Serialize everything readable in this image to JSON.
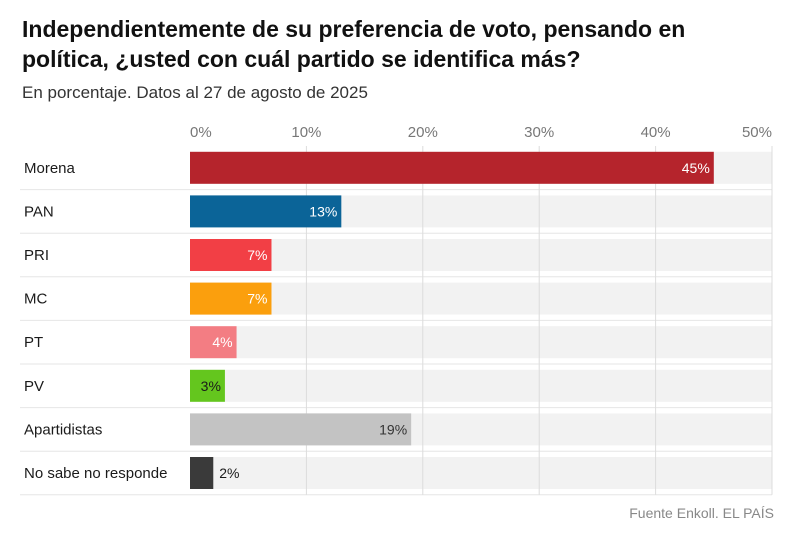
{
  "title": "Independientemente de su preferencia de voto, pensando en política, ¿usted con cuál partido se identifica más?",
  "subtitle": "En porcentaje. Datos al 27 de agosto de 2025",
  "source": "Fuente Enkoll. EL PAÍS",
  "chart_data": {
    "type": "bar",
    "orientation": "horizontal",
    "categories": [
      "Morena",
      "PAN",
      "PRI",
      "MC",
      "PT",
      "PV",
      "Apartidistas",
      "No sabe no responde"
    ],
    "values": [
      45,
      13,
      7,
      7,
      4,
      3,
      19,
      2
    ],
    "value_labels": [
      "45%",
      "13%",
      "7%",
      "7%",
      "4%",
      "3%",
      "19%",
      "2%"
    ],
    "colors": [
      "#b5242c",
      "#0b6498",
      "#f23f45",
      "#fb9f0d",
      "#f37d83",
      "#64c61e",
      "#c3c3c3",
      "#3a3a3a"
    ],
    "label_colors": [
      "#ffffff",
      "#ffffff",
      "#ffffff",
      "#ffffff",
      "#ffffff",
      "#1a1a1a",
      "#333333",
      "#1a1a1a"
    ],
    "label_inside": [
      true,
      true,
      true,
      true,
      true,
      true,
      true,
      false
    ],
    "xticks": [
      0,
      10,
      20,
      30,
      40,
      50
    ],
    "xtick_labels": [
      "0%",
      "10%",
      "20%",
      "30%",
      "40%",
      "50%"
    ],
    "xlim": [
      0,
      50
    ],
    "track_color": "#f2f2f2",
    "grid": true,
    "xlabel": "",
    "ylabel": ""
  }
}
